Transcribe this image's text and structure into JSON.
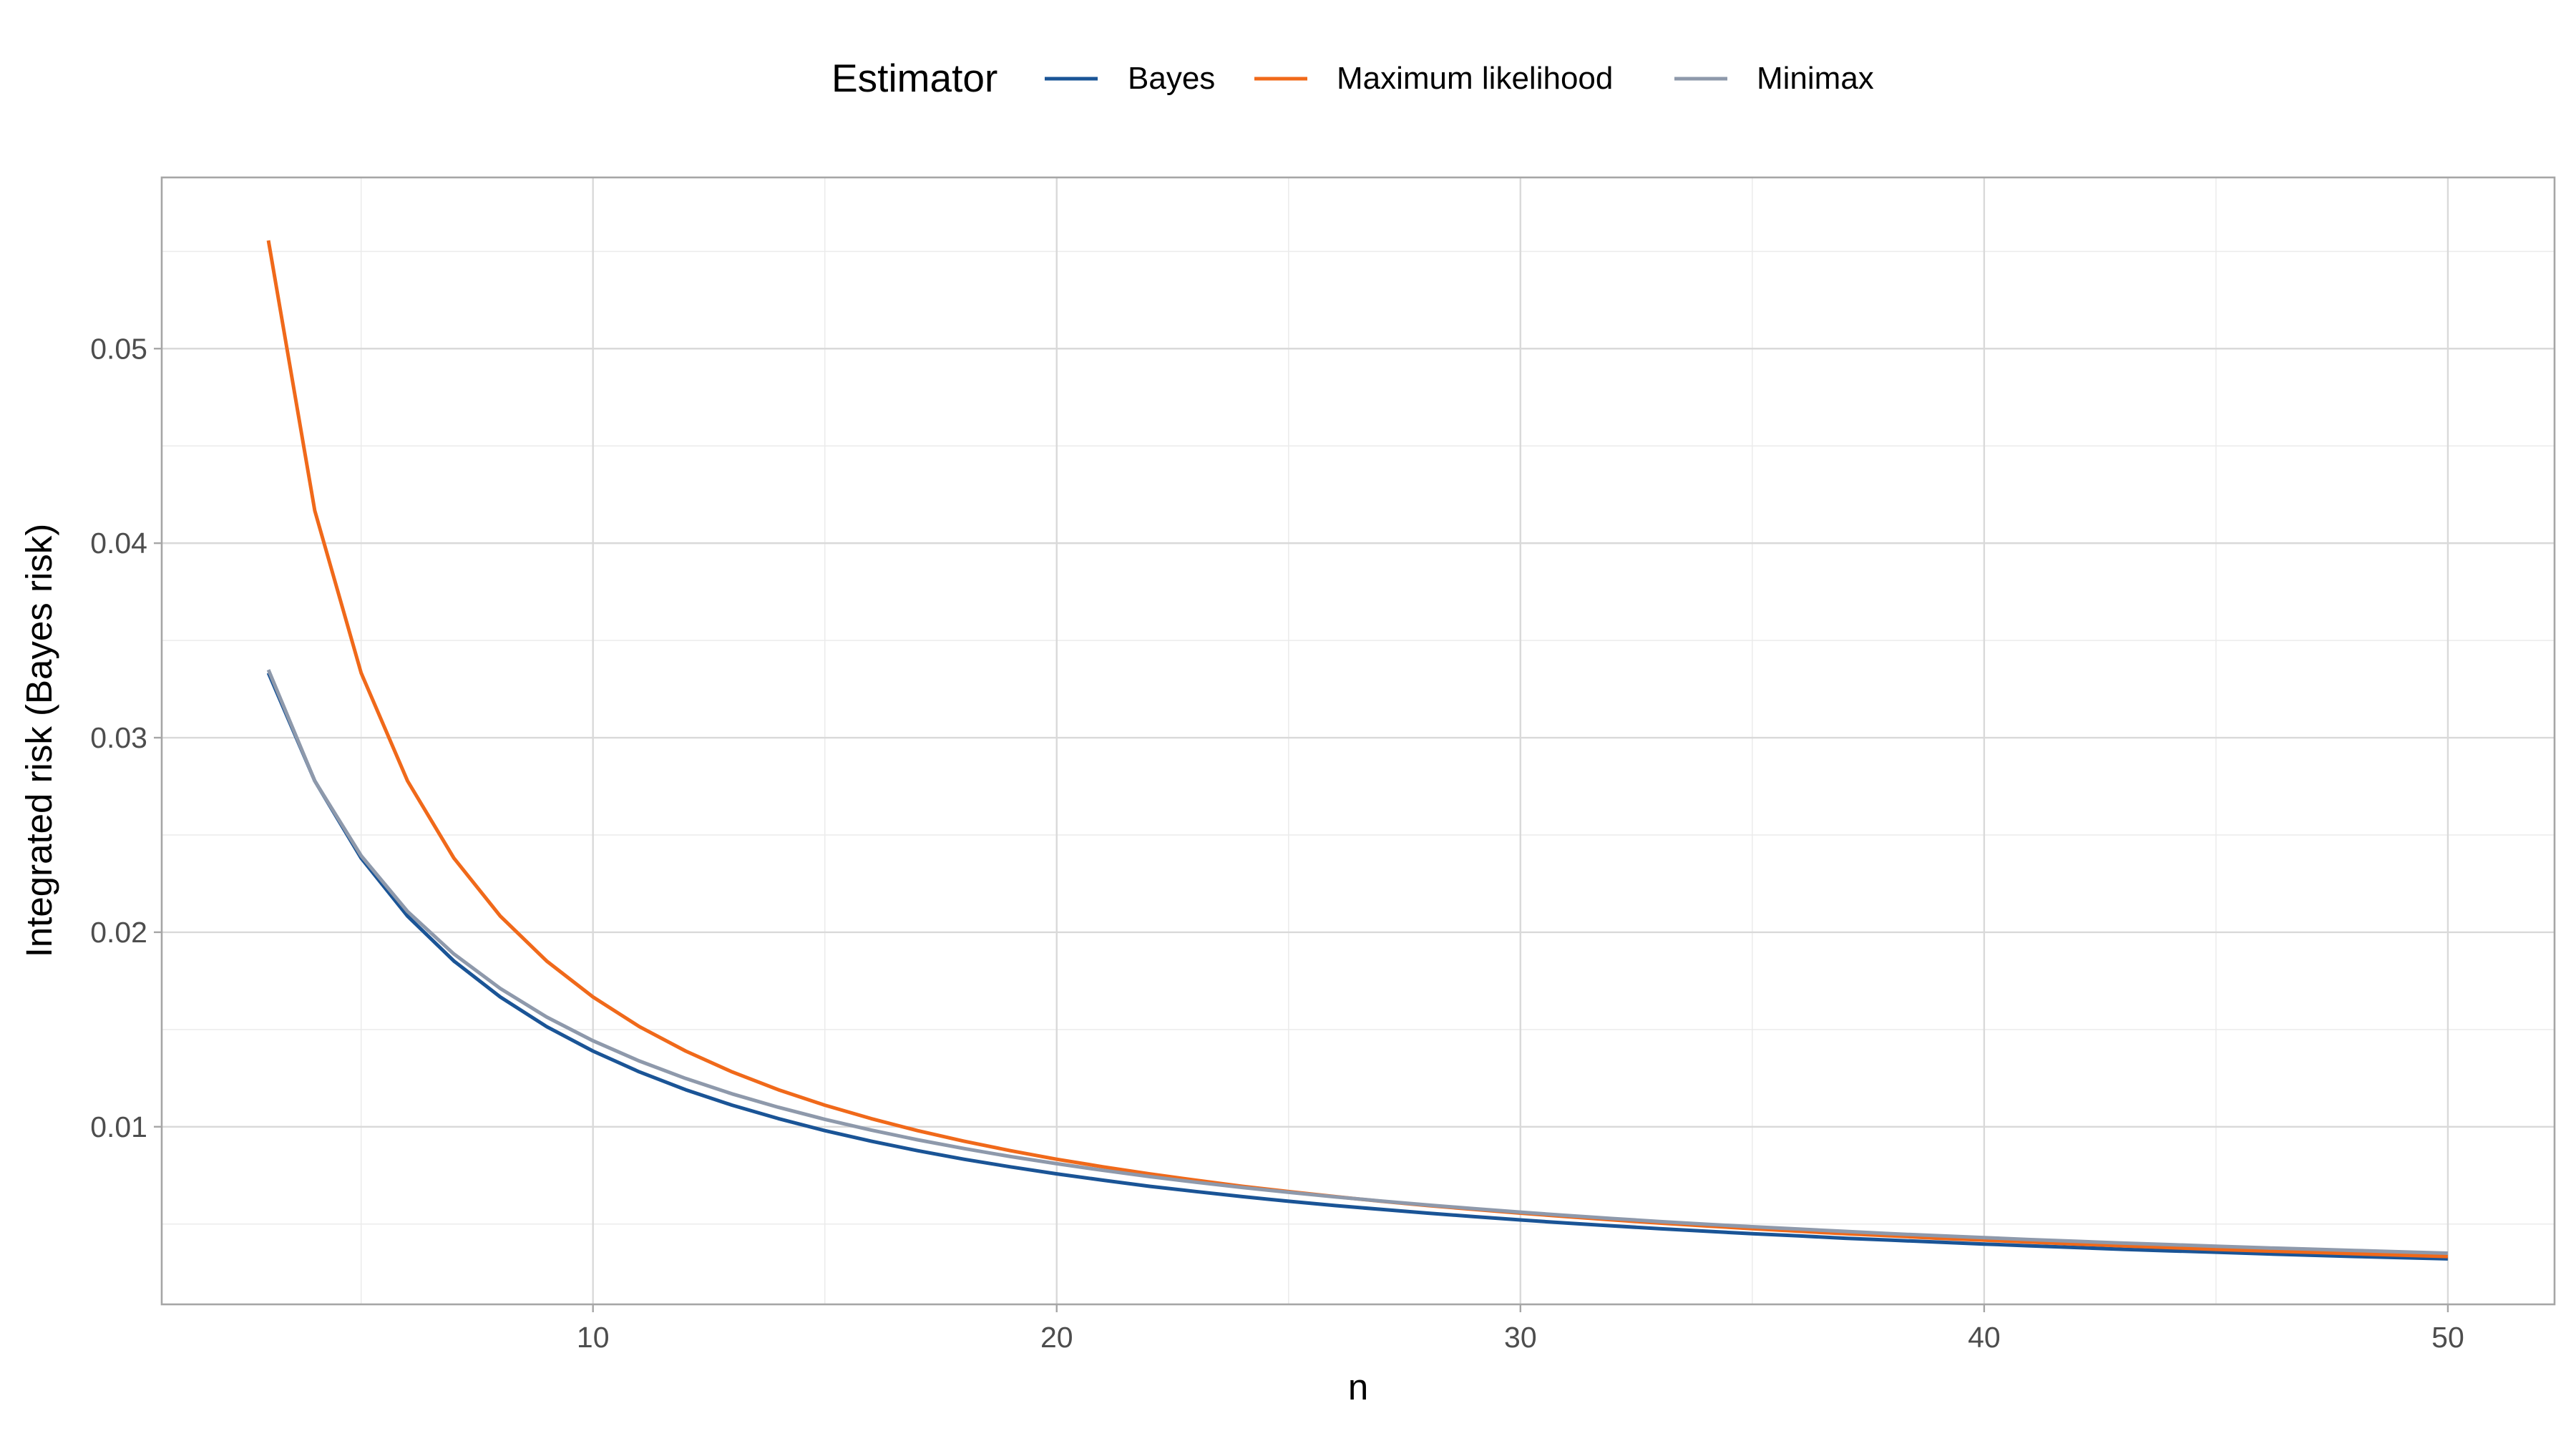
{
  "chart_data": {
    "type": "line",
    "xlabel": "n",
    "ylabel": "Integrated risk (Bayes risk)",
    "xlim": [
      0.7,
      52.3
    ],
    "ylim": [
      0.00087,
      0.0588
    ],
    "x_ticks": [
      10,
      20,
      30,
      40,
      50
    ],
    "x_tick_labels": [
      "10",
      "20",
      "30",
      "40",
      "50"
    ],
    "x_minor_ticks": [
      5,
      15,
      25,
      35,
      45
    ],
    "y_ticks": [
      0.01,
      0.02,
      0.03,
      0.04,
      0.05
    ],
    "y_tick_labels": [
      "0.01",
      "0.02",
      "0.03",
      "0.04",
      "0.05"
    ],
    "y_minor_ticks": [
      0.005,
      0.015,
      0.025,
      0.035,
      0.045,
      0.055
    ],
    "grid": true,
    "legend": {
      "title": "Estimator",
      "position": "top"
    },
    "x": [
      3,
      4,
      5,
      6,
      7,
      8,
      9,
      10,
      11,
      12,
      13,
      14,
      15,
      16,
      17,
      18,
      19,
      20,
      21,
      22,
      23,
      24,
      25,
      26,
      27,
      28,
      29,
      30,
      31,
      32,
      33,
      34,
      35,
      36,
      37,
      38,
      39,
      40,
      41,
      42,
      43,
      44,
      45,
      46,
      47,
      48,
      49,
      50
    ],
    "series": [
      {
        "name": "Bayes",
        "color": "#1a5496",
        "values": [
          0.03333,
          0.02778,
          0.02381,
          0.02083,
          0.01852,
          0.01667,
          0.01515,
          0.01389,
          0.01282,
          0.0119,
          0.01111,
          0.01042,
          0.0098,
          0.00926,
          0.00877,
          0.00833,
          0.00794,
          0.00758,
          0.00725,
          0.00694,
          0.00667,
          0.00641,
          0.00617,
          0.00595,
          0.00575,
          0.00556,
          0.00538,
          0.00521,
          0.00505,
          0.0049,
          0.00476,
          0.00463,
          0.0045,
          0.00439,
          0.00427,
          0.00417,
          0.00407,
          0.00397,
          0.00388,
          0.00379,
          0.0037,
          0.00362,
          0.00355,
          0.00347,
          0.0034,
          0.00333,
          0.00327,
          0.00321
        ]
      },
      {
        "name": "Maximum likelihood",
        "color": "#f0691a",
        "values": [
          0.05556,
          0.04167,
          0.03333,
          0.02778,
          0.02381,
          0.02083,
          0.01852,
          0.01667,
          0.01515,
          0.01389,
          0.01282,
          0.0119,
          0.01111,
          0.01042,
          0.0098,
          0.00926,
          0.00877,
          0.00833,
          0.00794,
          0.00758,
          0.00725,
          0.00694,
          0.00667,
          0.00641,
          0.00617,
          0.00595,
          0.00575,
          0.00556,
          0.00538,
          0.00521,
          0.00505,
          0.0049,
          0.00476,
          0.00463,
          0.0045,
          0.00439,
          0.00427,
          0.00417,
          0.00407,
          0.00397,
          0.00388,
          0.00379,
          0.0037,
          0.00362,
          0.00355,
          0.00347,
          0.0034,
          0.00333
        ]
      },
      {
        "name": "Minimax",
        "color": "#8e99ab",
        "values": [
          0.03349,
          0.02778,
          0.02393,
          0.02107,
          0.01888,
          0.01711,
          0.01564,
          0.01442,
          0.01338,
          0.01248,
          0.01169,
          0.011,
          0.01038,
          0.00983,
          0.00933,
          0.00888,
          0.00847,
          0.0081,
          0.00776,
          0.00744,
          0.00715,
          0.00688,
          0.00663,
          0.0064,
          0.00618,
          0.00598,
          0.00579,
          0.00561,
          0.00544,
          0.00528,
          0.00513,
          0.00499,
          0.00486,
          0.00474,
          0.00462,
          0.0045,
          0.0044,
          0.0043,
          0.0042,
          0.00411,
          0.00402,
          0.00394,
          0.00386,
          0.00378,
          0.00371,
          0.00364,
          0.00357,
          0.0035
        ]
      }
    ]
  }
}
